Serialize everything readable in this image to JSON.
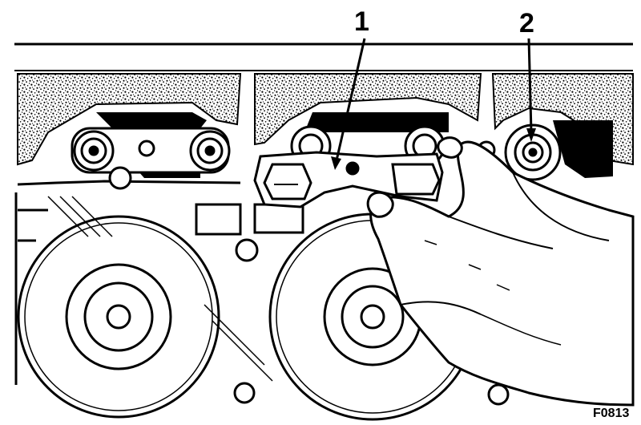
{
  "callouts": {
    "one": "1",
    "two": "2"
  },
  "figure_code": "F0813",
  "colors": {
    "ink": "#000000",
    "paper": "#ffffff"
  }
}
